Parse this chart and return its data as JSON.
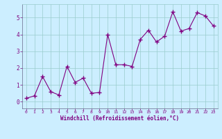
{
  "x": [
    0,
    1,
    2,
    3,
    4,
    5,
    6,
    7,
    8,
    9,
    10,
    11,
    12,
    13,
    14,
    15,
    16,
    17,
    18,
    19,
    20,
    21,
    22,
    23
  ],
  "y": [
    0.2,
    0.35,
    1.5,
    0.6,
    0.4,
    2.1,
    1.15,
    1.4,
    0.5,
    0.55,
    4.0,
    2.2,
    2.2,
    2.1,
    3.7,
    4.25,
    3.55,
    3.9,
    5.35,
    4.2,
    4.35,
    5.3,
    5.1,
    4.5
  ],
  "line_color": "#800080",
  "marker_color": "#800080",
  "bg_color": "#cceeff",
  "grid_color": "#99cccc",
  "xlabel": "Windchill (Refroidissement éolien,°C)",
  "tick_color": "#800080",
  "ylim": [
    -0.4,
    5.8
  ],
  "xlim": [
    -0.5,
    23.5
  ],
  "yticks": [
    0,
    1,
    2,
    3,
    4,
    5
  ],
  "xticks": [
    0,
    1,
    2,
    3,
    4,
    5,
    6,
    7,
    8,
    9,
    10,
    11,
    12,
    13,
    14,
    15,
    16,
    17,
    18,
    19,
    20,
    21,
    22,
    23
  ]
}
